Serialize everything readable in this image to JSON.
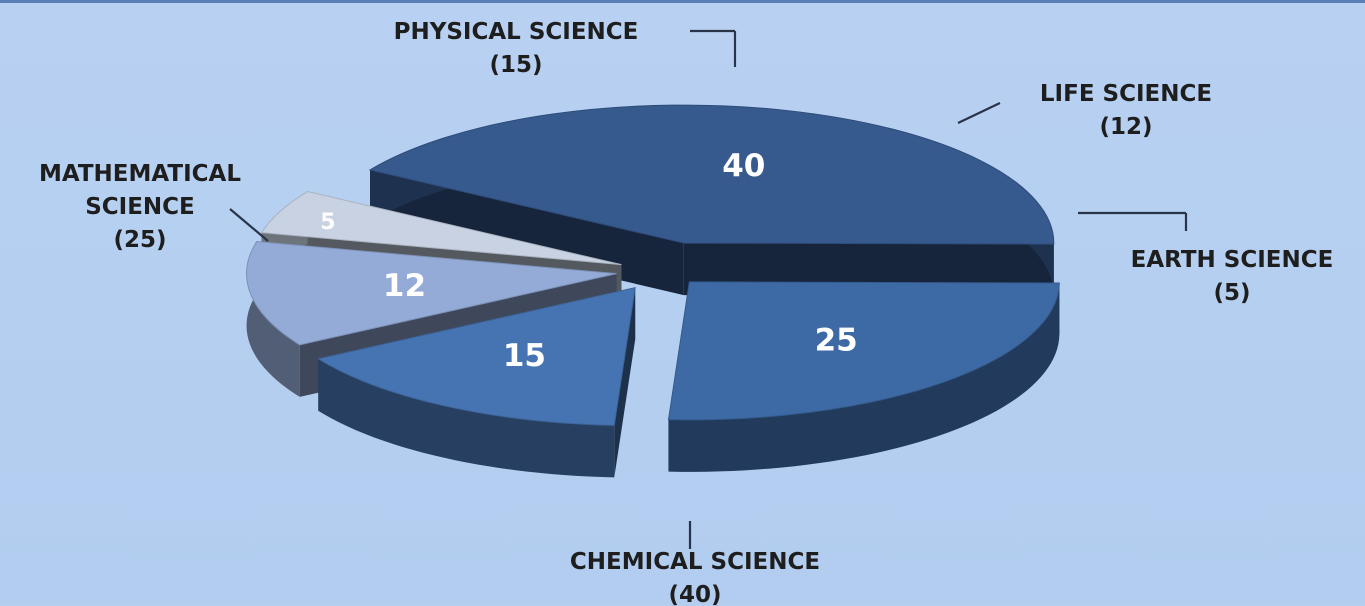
{
  "chart_data": {
    "type": "pie",
    "title": "",
    "slices": [
      {
        "category": "CHEMICAL SCIENCE",
        "value": 40,
        "label_line1": "CHEMICAL SCIENCE",
        "label_line2": "(40)",
        "color": "#36598e"
      },
      {
        "category": "MATHEMATICAL SCIENCE",
        "value": 25,
        "label_line1": "MATHEMATICAL",
        "label_line2": "SCIENCE",
        "label_line3": "(25)",
        "color": "#3d6aa5"
      },
      {
        "category": "PHYSICAL SCIENCE",
        "value": 15,
        "label_line1": "PHYSICAL SCIENCE",
        "label_line2": "(15)",
        "color": "#4674b2"
      },
      {
        "category": "LIFE SCIENCE",
        "value": 12,
        "label_line1": "LIFE SCIENCE",
        "label_line2": "(12)",
        "color": "#93abd6"
      },
      {
        "category": "EARTH SCIENCE",
        "value": 5,
        "label_line1": "EARTH SCIENCE",
        "label_line2": "(5)",
        "color": "#c8d2e2"
      }
    ],
    "style": "3d-exploded-pie",
    "legend": "none"
  }
}
